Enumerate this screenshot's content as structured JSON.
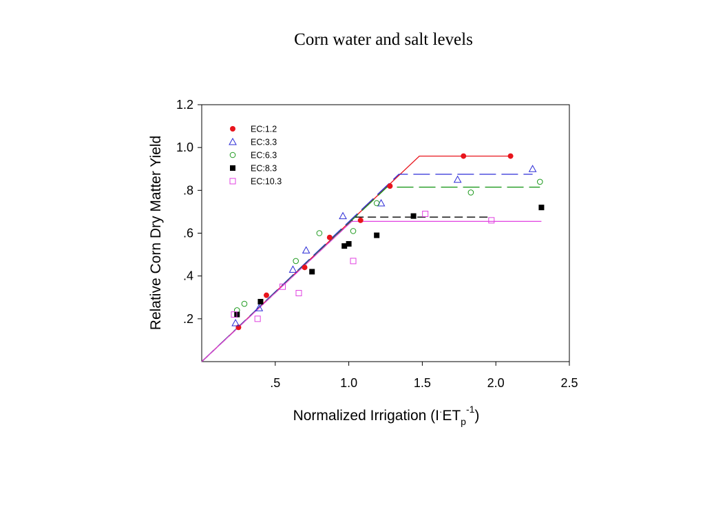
{
  "chart_data": {
    "type": "scatter",
    "title": "Corn water and salt levels",
    "xlabel": {
      "main": "Normalized Irrigation (I",
      "dot": "·",
      "et": "ET",
      "sub": "p",
      "sup": "-1",
      "close": ")"
    },
    "ylabel": "Relative Corn Dry Matter Yield",
    "xlim": [
      0,
      2.5
    ],
    "ylim": [
      0,
      1.2
    ],
    "xticks": [
      {
        "value": 0.5,
        "label": ".5"
      },
      {
        "value": 1.0,
        "label": "1.0"
      },
      {
        "value": 1.5,
        "label": "1.5"
      },
      {
        "value": 2.0,
        "label": "2.0"
      },
      {
        "value": 2.5,
        "label": "2.5"
      }
    ],
    "yticks": [
      {
        "value": 0.2,
        "label": ".2"
      },
      {
        "value": 0.4,
        "label": ".4"
      },
      {
        "value": 0.6,
        "label": ".6"
      },
      {
        "value": 0.8,
        "label": ".8"
      },
      {
        "value": 1.0,
        "label": "1.0"
      },
      {
        "value": 1.2,
        "label": "1.2"
      }
    ],
    "grid": false,
    "legend_position": "top-left",
    "series": [
      {
        "name": "EC:1.2",
        "marker": "filled-circle",
        "color": "#e8141c",
        "points": [
          [
            0.25,
            0.16
          ],
          [
            0.44,
            0.31
          ],
          [
            0.7,
            0.44
          ],
          [
            0.87,
            0.58
          ],
          [
            1.08,
            0.66
          ],
          [
            1.28,
            0.82
          ],
          [
            1.78,
            0.96
          ],
          [
            2.1,
            0.96
          ]
        ],
        "fit": {
          "style": "solid",
          "x": [
            0,
            1.48,
            2.1
          ],
          "y": [
            0,
            0.96,
            0.96
          ]
        }
      },
      {
        "name": "EC:3.3",
        "marker": "open-triangle",
        "color": "#2a2ad6",
        "points": [
          [
            0.23,
            0.18
          ],
          [
            0.39,
            0.25
          ],
          [
            0.62,
            0.43
          ],
          [
            0.71,
            0.52
          ],
          [
            0.96,
            0.68
          ],
          [
            1.22,
            0.74
          ],
          [
            1.74,
            0.85
          ],
          [
            2.25,
            0.9
          ]
        ],
        "fit": {
          "style": "long-dash",
          "x": [
            0,
            1.34,
            2.25
          ],
          "y": [
            0,
            0.875,
            0.875
          ]
        }
      },
      {
        "name": "EC:6.3",
        "marker": "open-circle",
        "color": "#1e9a1e",
        "points": [
          [
            0.24,
            0.24
          ],
          [
            0.29,
            0.27
          ],
          [
            0.64,
            0.47
          ],
          [
            0.8,
            0.6
          ],
          [
            1.03,
            0.61
          ],
          [
            1.19,
            0.74
          ],
          [
            1.83,
            0.79
          ],
          [
            2.3,
            0.84
          ]
        ],
        "fit": {
          "style": "long-dash",
          "x": [
            0,
            1.26,
            2.3
          ],
          "y": [
            0,
            0.815,
            0.815
          ]
        }
      },
      {
        "name": "EC:8.3",
        "marker": "filled-square",
        "color": "#000000",
        "points": [
          [
            0.24,
            0.22
          ],
          [
            0.4,
            0.28
          ],
          [
            0.75,
            0.42
          ],
          [
            0.97,
            0.54
          ],
          [
            1.0,
            0.55
          ],
          [
            1.19,
            0.59
          ],
          [
            1.44,
            0.68
          ],
          [
            2.31,
            0.72
          ]
        ],
        "fit": {
          "style": "short-dash",
          "x": [
            0,
            1.05,
            1.97
          ],
          "y": [
            0,
            0.675,
            0.675
          ]
        }
      },
      {
        "name": "EC:10.3",
        "marker": "open-square",
        "color": "#e040e0",
        "points": [
          [
            0.22,
            0.22
          ],
          [
            0.38,
            0.2
          ],
          [
            0.55,
            0.35
          ],
          [
            0.66,
            0.32
          ],
          [
            1.03,
            0.47
          ],
          [
            1.52,
            0.69
          ],
          [
            1.97,
            0.66
          ]
        ],
        "fit": {
          "style": "solid",
          "x": [
            0,
            1.02,
            2.31
          ],
          "y": [
            0,
            0.655,
            0.655
          ]
        }
      }
    ]
  }
}
